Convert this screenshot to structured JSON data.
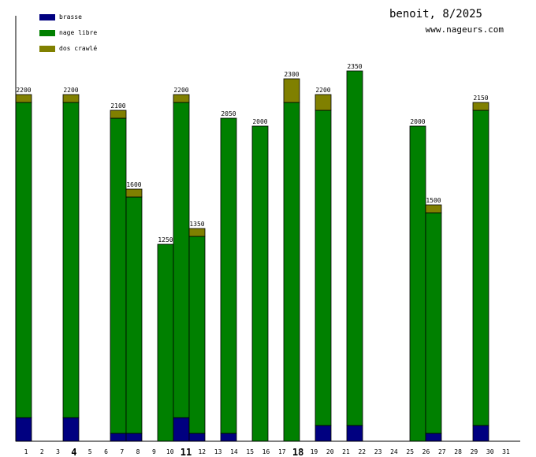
{
  "header": {
    "title": "benoit, 8/2025",
    "site": "www.nageurs.com"
  },
  "legend": [
    {
      "label": "brasse",
      "color": "#000080"
    },
    {
      "label": "nage libre",
      "color": "#008000"
    },
    {
      "label": "dos crawlé",
      "color": "#808000"
    }
  ],
  "chart_data": {
    "type": "bar",
    "stacked": true,
    "title": "benoit, 8/2025",
    "xlabel": "",
    "ylabel": "",
    "ylim": [
      0,
      2420
    ],
    "categories": [
      "1",
      "2",
      "3",
      "4",
      "5",
      "6",
      "7",
      "8",
      "9",
      "10",
      "11",
      "12",
      "13",
      "14",
      "15",
      "16",
      "17",
      "18",
      "19",
      "20",
      "21",
      "22",
      "23",
      "24",
      "25",
      "26",
      "27",
      "28",
      "29",
      "30",
      "31"
    ],
    "highlighted_categories": [
      "4",
      "11",
      "18"
    ],
    "series": [
      {
        "name": "brasse",
        "color": "#000080",
        "values": [
          150,
          0,
          0,
          150,
          0,
          0,
          50,
          50,
          0,
          0,
          150,
          50,
          0,
          50,
          0,
          0,
          0,
          0,
          0,
          100,
          0,
          100,
          0,
          0,
          0,
          0,
          50,
          0,
          0,
          100,
          0
        ]
      },
      {
        "name": "nage libre",
        "color": "#008000",
        "values": [
          2000,
          0,
          0,
          2000,
          0,
          0,
          2000,
          1500,
          0,
          1250,
          2000,
          1250,
          0,
          2000,
          0,
          2000,
          0,
          2150,
          0,
          2000,
          0,
          2250,
          0,
          0,
          0,
          2000,
          1400,
          0,
          0,
          2000,
          0
        ]
      },
      {
        "name": "dos crawlé",
        "color": "#808000",
        "values": [
          50,
          0,
          0,
          50,
          0,
          0,
          50,
          50,
          0,
          0,
          50,
          50,
          0,
          0,
          0,
          0,
          0,
          150,
          0,
          100,
          0,
          0,
          0,
          0,
          0,
          0,
          50,
          0,
          0,
          50,
          0
        ]
      }
    ],
    "totals": [
      2200,
      0,
      0,
      2200,
      0,
      0,
      2100,
      1600,
      0,
      1250,
      2200,
      1350,
      0,
      2050,
      0,
      2000,
      0,
      2300,
      0,
      2200,
      0,
      2350,
      0,
      0,
      0,
      2000,
      1500,
      0,
      0,
      2150,
      0
    ],
    "bar_groups": [
      {
        "days": [
          1,
          3,
          5,
          7,
          9,
          11,
          13,
          15,
          17,
          19,
          21,
          23,
          25,
          27,
          29,
          31
        ],
        "offset": "left"
      },
      {
        "days": [
          2,
          4,
          6,
          8,
          10,
          12,
          14,
          16,
          18,
          20,
          22,
          24,
          26,
          28,
          30
        ],
        "offset": "right"
      }
    ]
  }
}
